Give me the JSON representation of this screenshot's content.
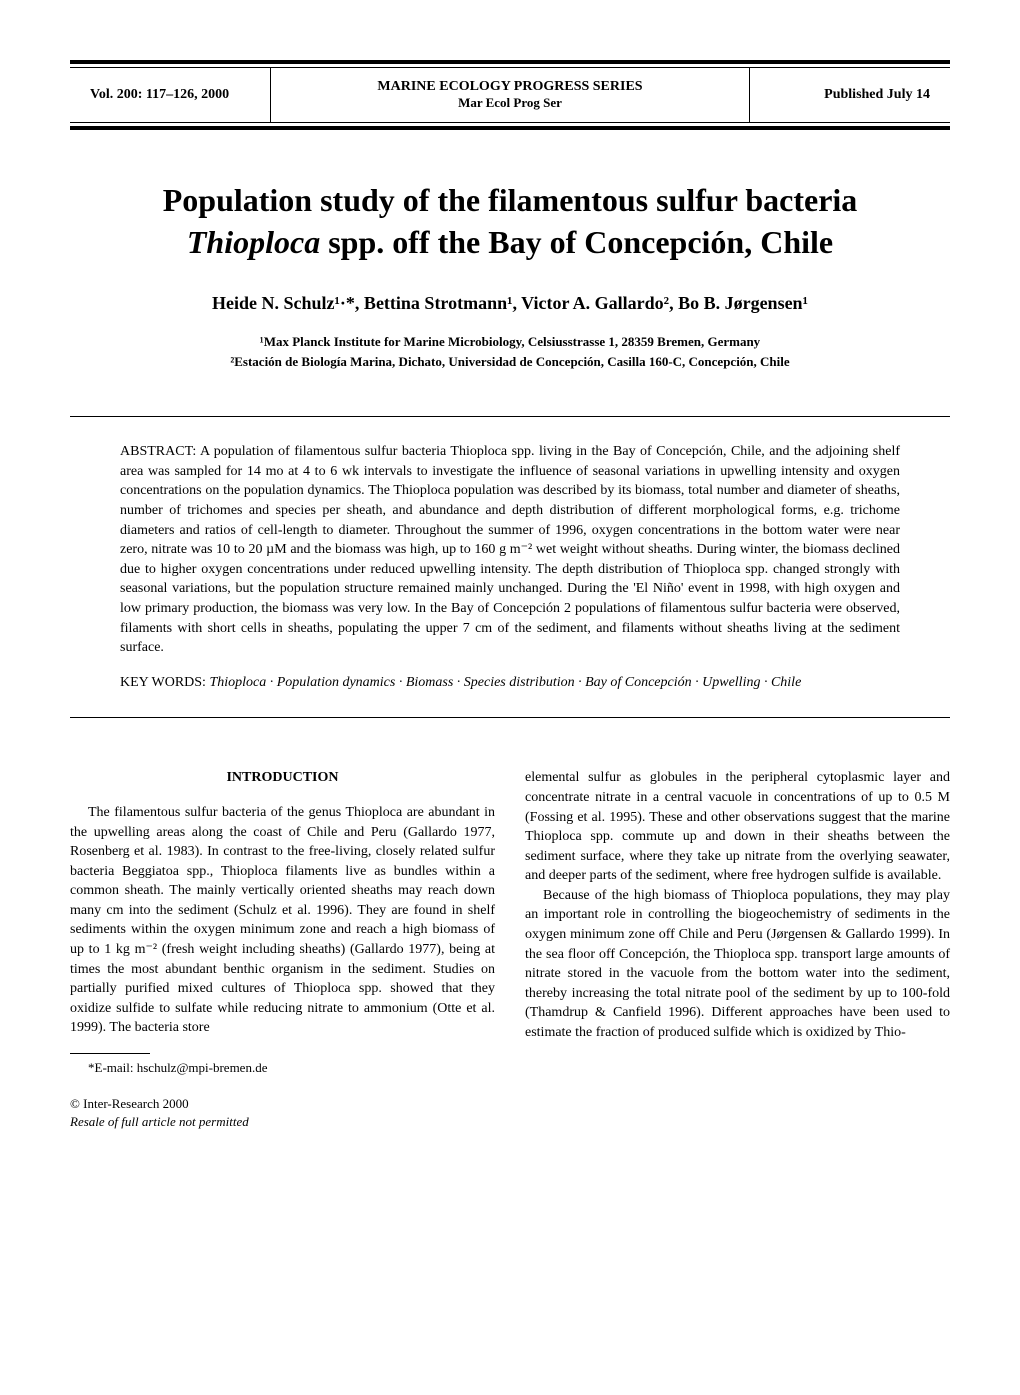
{
  "header": {
    "volume": "Vol. 200: 117–126, 2000",
    "series": "MARINE ECOLOGY PROGRESS SERIES",
    "abbrev": "Mar Ecol Prog Ser",
    "published": "Published July 14"
  },
  "title_line1": "Population study of the filamentous sulfur bacteria",
  "title_line2_italic": "Thioploca",
  "title_line2_rest": " spp. off the Bay of Concepción, Chile",
  "authors": "Heide N. Schulz¹·*, Bettina Strotmann¹, Victor A. Gallardo², Bo B. Jørgensen¹",
  "affiliation1": "¹Max Planck Institute for Marine Microbiology, Celsiusstrasse 1, 28359 Bremen, Germany",
  "affiliation2": "²Estación de Biología Marina, Dichato, Universidad de Concepción, Casilla 160-C, Concepción, Chile",
  "abstract_label": "ABSTRACT: ",
  "abstract_body": "A population of filamentous sulfur bacteria Thioploca spp. living in the Bay of Concepción, Chile, and the adjoining shelf area was sampled for 14 mo at 4 to 6 wk intervals to investigate the influence of seasonal variations in upwelling intensity and oxygen concentrations on the population dynamics. The Thioploca population was described by its biomass, total number and diameter of sheaths, number of trichomes and species per sheath, and abundance and depth distribution of different morphological forms, e.g. trichome diameters and ratios of cell-length to diameter. Throughout the summer of 1996, oxygen concentrations in the bottom water were near zero, nitrate was 10 to 20 µM and the biomass was high, up to 160 g m⁻² wet weight without sheaths. During winter, the biomass declined due to higher oxygen concentrations under reduced upwelling intensity. The depth distribution of Thioploca spp. changed strongly with seasonal variations, but the population structure remained mainly unchanged. During the 'El Niño' event in 1998, with high oxygen and low primary production, the biomass was very low. In the Bay of Concepción 2 populations of filamentous sulfur bacteria were observed, filaments with short cells in sheaths, populating the upper 7 cm of the sediment, and filaments without sheaths living at the sediment surface.",
  "keywords_label": "KEY WORDS:  ",
  "keywords_body": "Thioploca · Population dynamics · Biomass · Species distribution · Bay of Concepción · Upwelling · Chile",
  "intro_heading": "INTRODUCTION",
  "col1_p1": "The filamentous sulfur bacteria of the genus Thioploca are abundant in the upwelling areas along the coast of Chile and Peru (Gallardo 1977, Rosenberg et al. 1983). In contrast to the free-living, closely related sulfur bacteria Beggiatoa spp., Thioploca filaments live as bundles within a common sheath. The mainly vertically oriented sheaths may reach down many cm into the sediment (Schulz et al. 1996). They are found in shelf sediments within the oxygen minimum zone and reach a high biomass of up to 1 kg m⁻² (fresh weight including sheaths) (Gallardo 1977), being at times the most abundant benthic organism in the sediment. Studies on partially purified mixed cultures of Thioploca spp. showed that they oxidize sulfide to sulfate while reducing nitrate to ammonium (Otte et al. 1999). The bacteria store",
  "col2_p1": "elemental sulfur as globules in the peripheral cytoplasmic layer and concentrate nitrate in a central vacuole in concentrations of up to 0.5 M (Fossing et al. 1995). These and other observations suggest that the marine Thioploca spp. commute up and down in their sheaths between the sediment surface, where they take up nitrate from the overlying seawater, and deeper parts of the sediment, where free hydrogen sulfide is available.",
  "col2_p2": "Because of the high biomass of Thioploca populations, they may play an important role in controlling the biogeochemistry of sediments in the oxygen minimum zone off Chile and Peru (Jørgensen & Gallardo 1999). In the sea floor off Concepción, the Thioploca spp. transport large amounts of nitrate stored in the vacuole from the bottom water into the sediment, thereby increasing the total nitrate pool of the sediment by up to 100-fold (Thamdrup & Canfield 1996). Different approaches have been used to estimate the fraction of produced sulfide which is oxidized by Thio-",
  "footnote": "*E-mail: hschulz@mpi-bremen.de",
  "copyright1": "© Inter-Research 2000",
  "copyright2": "Resale of full article not permitted"
}
